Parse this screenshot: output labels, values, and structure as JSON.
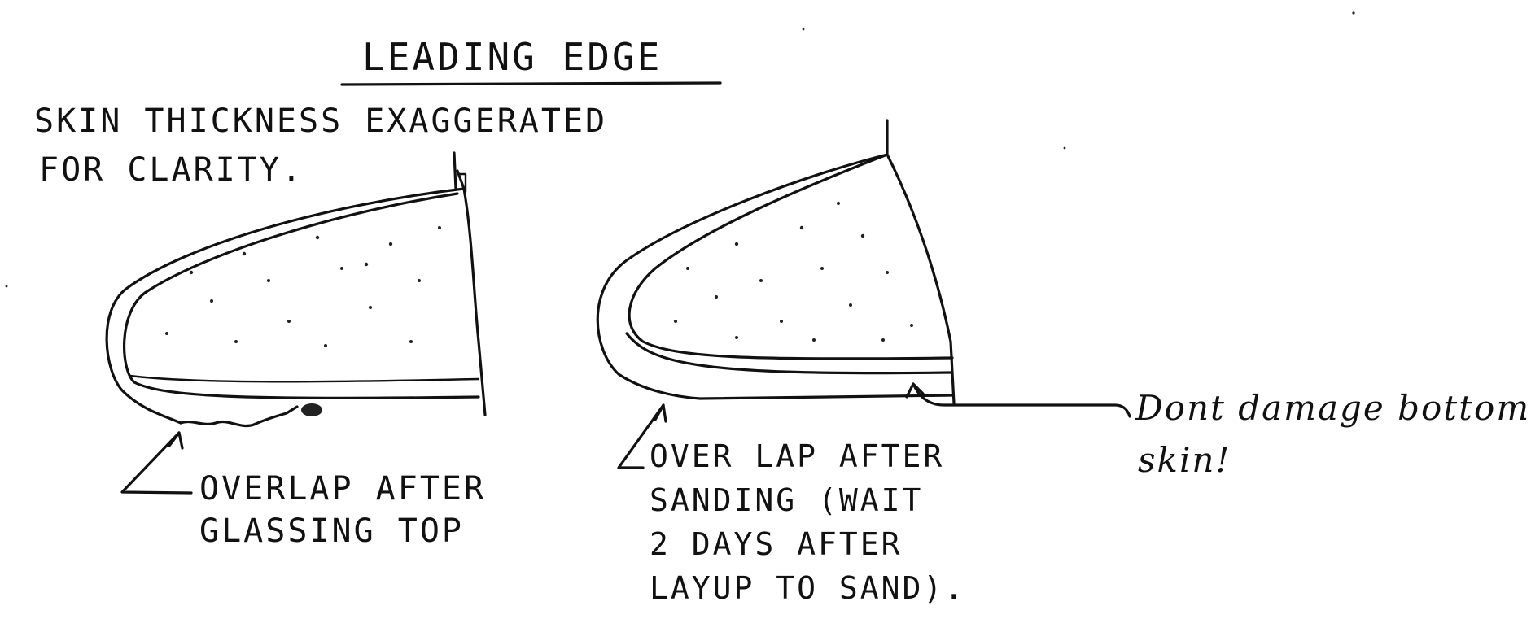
{
  "title": "LEADING EDGE",
  "note": {
    "line1": "SKIN THICKNESS  EXAGGERATED",
    "line2": "FOR  CLARITY."
  },
  "left_callout": {
    "line1": "OVERLAP AFTER",
    "line2": "GLASSING TOP"
  },
  "middle_callout": {
    "line1": "OVER LAP AFTER",
    "line2": "SANDING (WAIT",
    "line3": "2 DAYS AFTER",
    "line4": "LAYUP TO SAND)."
  },
  "right_callout": {
    "line1": "Dont damage bottom",
    "line2": "skin!"
  }
}
